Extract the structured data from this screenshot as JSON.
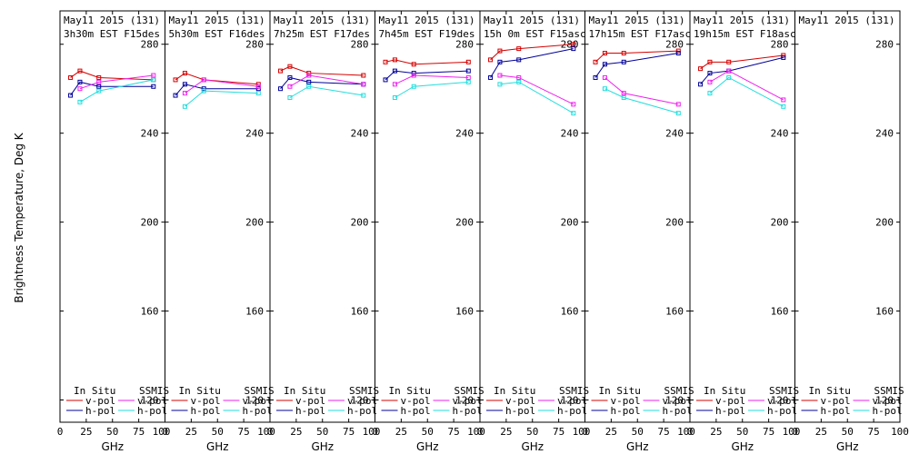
{
  "chart_data": {
    "type": "line",
    "ylabel": "Brightness Temperature, Deg K",
    "xlabel": "GHz",
    "ylim": [
      110,
      295
    ],
    "xlim": [
      0,
      100
    ],
    "yticks": [
      120,
      160,
      200,
      240,
      280
    ],
    "xticks": [
      0,
      25,
      50,
      75,
      100
    ],
    "xtick_labels": [
      "0",
      "25",
      "50",
      "75",
      "100"
    ],
    "last_xtick_label": "100",
    "legend": {
      "in_situ_label": "In Situ",
      "ssmis_label": "SSMIS",
      "vpol_label": "v-pol",
      "hpol_label": "h-pol"
    },
    "colors": {
      "insitu_v": "#d40000",
      "insitu_h": "#000099",
      "ssmis_v": "#ee22ee",
      "ssmis_h": "#22dddd"
    },
    "panels": [
      {
        "date": "May11 2015 (131)",
        "time": "3h30m EST F15des",
        "series": [
          {
            "name": "In Situ v-pol",
            "x": [
              10,
              19,
              37,
              89
            ],
            "values": [
              265,
              268,
              265,
              264
            ]
          },
          {
            "name": "In Situ h-pol",
            "x": [
              10,
              19,
              37,
              89
            ],
            "values": [
              257,
              263,
              261,
              261
            ]
          },
          {
            "name": "SSMIS v-pol",
            "x": [
              19,
              37,
              89
            ],
            "values": [
              260,
              263,
              266
            ]
          },
          {
            "name": "SSMIS h-pol",
            "x": [
              19,
              37,
              89
            ],
            "values": [
              254,
              259,
              264
            ]
          }
        ]
      },
      {
        "date": "May11 2015 (131)",
        "time": "5h30m EST F16des",
        "series": [
          {
            "name": "In Situ v-pol",
            "x": [
              10,
              19,
              37,
              89
            ],
            "values": [
              264,
              267,
              264,
              262
            ]
          },
          {
            "name": "In Situ h-pol",
            "x": [
              10,
              19,
              37,
              89
            ],
            "values": [
              257,
              262,
              260,
              260
            ]
          },
          {
            "name": "SSMIS v-pol",
            "x": [
              19,
              37,
              89
            ],
            "values": [
              258,
              264,
              261
            ]
          },
          {
            "name": "SSMIS h-pol",
            "x": [
              19,
              37,
              89
            ],
            "values": [
              252,
              259,
              258
            ]
          }
        ]
      },
      {
        "date": "May11 2015 (131)",
        "time": "7h25m EST F17des",
        "series": [
          {
            "name": "In Situ v-pol",
            "x": [
              10,
              19,
              37,
              89
            ],
            "values": [
              268,
              270,
              267,
              266
            ]
          },
          {
            "name": "In Situ h-pol",
            "x": [
              10,
              19,
              37,
              89
            ],
            "values": [
              260,
              265,
              263,
              262
            ]
          },
          {
            "name": "SSMIS v-pol",
            "x": [
              19,
              37,
              89
            ],
            "values": [
              261,
              266,
              262
            ]
          },
          {
            "name": "SSMIS h-pol",
            "x": [
              19,
              37,
              89
            ],
            "values": [
              256,
              261,
              257
            ]
          }
        ]
      },
      {
        "date": "May11 2015 (131)",
        "time": "7h45m EST F19des",
        "series": [
          {
            "name": "In Situ v-pol",
            "x": [
              10,
              19,
              37,
              89
            ],
            "values": [
              272,
              273,
              271,
              272
            ]
          },
          {
            "name": "In Situ h-pol",
            "x": [
              10,
              19,
              37,
              89
            ],
            "values": [
              264,
              268,
              267,
              268
            ]
          },
          {
            "name": "SSMIS v-pol",
            "x": [
              19,
              37,
              89
            ],
            "values": [
              262,
              266,
              265
            ]
          },
          {
            "name": "SSMIS h-pol",
            "x": [
              19,
              37,
              89
            ],
            "values": [
              256,
              261,
              263
            ]
          }
        ]
      },
      {
        "date": "May11 2015 (131)",
        "time": "15h 0m EST F15asc",
        "series": [
          {
            "name": "In Situ v-pol",
            "x": [
              10,
              19,
              37,
              89
            ],
            "values": [
              273,
              277,
              278,
              280
            ]
          },
          {
            "name": "In Situ h-pol",
            "x": [
              10,
              19,
              37,
              89
            ],
            "values": [
              265,
              272,
              273,
              278
            ]
          },
          {
            "name": "SSMIS v-pol",
            "x": [
              19,
              37,
              89
            ],
            "values": [
              266,
              265,
              253
            ]
          },
          {
            "name": "SSMIS h-pol",
            "x": [
              19,
              37,
              89
            ],
            "values": [
              262,
              263,
              249
            ]
          }
        ]
      },
      {
        "date": "May11 2015 (131)",
        "time": "17h15m EST F17asc",
        "series": [
          {
            "name": "In Situ v-pol",
            "x": [
              10,
              19,
              37,
              89
            ],
            "values": [
              272,
              276,
              276,
              277
            ]
          },
          {
            "name": "In Situ h-pol",
            "x": [
              10,
              19,
              37,
              89
            ],
            "values": [
              265,
              271,
              272,
              276
            ]
          },
          {
            "name": "SSMIS v-pol",
            "x": [
              19,
              37,
              89
            ],
            "values": [
              265,
              258,
              253
            ]
          },
          {
            "name": "SSMIS h-pol",
            "x": [
              19,
              37,
              89
            ],
            "values": [
              260,
              256,
              249
            ]
          }
        ]
      },
      {
        "date": "May11 2015 (131)",
        "time": "19h15m EST F18asc",
        "series": [
          {
            "name": "In Situ v-pol",
            "x": [
              10,
              19,
              37,
              89
            ],
            "values": [
              269,
              272,
              272,
              275
            ]
          },
          {
            "name": "In Situ h-pol",
            "x": [
              10,
              19,
              37,
              89
            ],
            "values": [
              262,
              267,
              268,
              274
            ]
          },
          {
            "name": "SSMIS v-pol",
            "x": [
              19,
              37,
              89
            ],
            "values": [
              263,
              268,
              255
            ]
          },
          {
            "name": "SSMIS h-pol",
            "x": [
              19,
              37,
              89
            ],
            "values": [
              258,
              265,
              252
            ]
          }
        ]
      },
      {
        "date": "May11 2015 (131)",
        "time": "",
        "series": []
      }
    ]
  }
}
